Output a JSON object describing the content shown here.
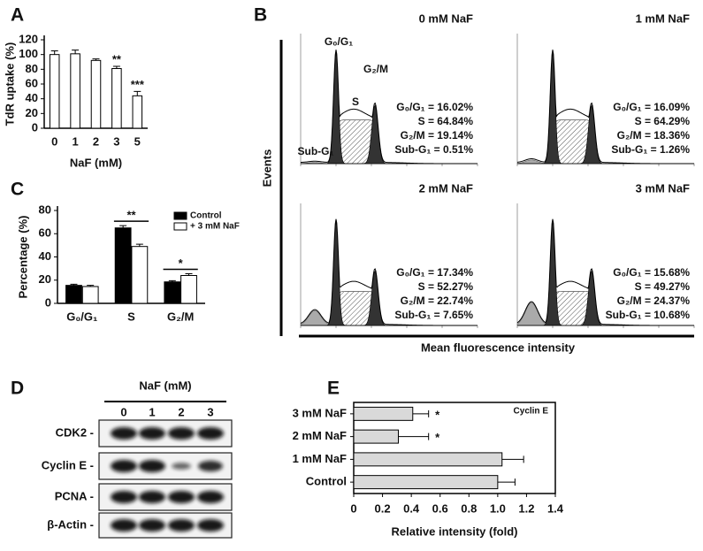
{
  "panel_labels": [
    "A",
    "B",
    "C",
    "D",
    "E"
  ],
  "chart_data": [
    {
      "type": "bar",
      "categories": [
        "0",
        "1",
        "2",
        "3",
        "5"
      ],
      "values": [
        100,
        101,
        92,
        81,
        44
      ],
      "errors": [
        5,
        5,
        2,
        3,
        6
      ],
      "color": "#ffffff",
      "ylim": [
        0,
        120
      ],
      "yticks": [
        0,
        20,
        40,
        60,
        80,
        100,
        120
      ],
      "ylabel": "TdR uptake (%)",
      "xlabel": "NaF (mM)",
      "annotations": [
        {
          "text": "**",
          "category": "3"
        },
        {
          "text": "***",
          "category": "5"
        }
      ]
    },
    {
      "type": "bar",
      "categories": [
        "G₀/G₁",
        "S",
        "G₂/M"
      ],
      "series": [
        {
          "name": "Control",
          "color": "#000000",
          "values": [
            15.5,
            65,
            18.5
          ],
          "errors": [
            1,
            2,
            1
          ]
        },
        {
          "name": "+ 3 mM NaF",
          "color": "#ffffff",
          "values": [
            14.5,
            49,
            24
          ],
          "errors": [
            1,
            2,
            1.5
          ]
        }
      ],
      "ylim": [
        0,
        80
      ],
      "yticks": [
        0,
        20,
        40,
        60,
        80
      ],
      "ylabel": "Percentage (%)",
      "legend": "upper right",
      "annotations": [
        {
          "text": "**",
          "category": "S"
        },
        {
          "text": "*",
          "category": "G₂/M"
        }
      ]
    },
    {
      "type": "hbar",
      "title": "Cyclin E",
      "categories": [
        "Control",
        "1 mM NaF",
        "2 mM NaF",
        "3 mM NaF"
      ],
      "values": [
        1.0,
        1.03,
        0.31,
        0.41
      ],
      "errors": [
        0.12,
        0.15,
        0.21,
        0.11
      ],
      "color": "#d9d9d9",
      "xlim": [
        0,
        1.4
      ],
      "xticks": [
        0,
        0.2,
        0.4,
        0.6,
        0.8,
        {
          "value": 1,
          "label": "1.0"
        },
        1.2,
        1.4
      ],
      "xlabel": "Relative intensity (fold)",
      "annotations": [
        {
          "text": "*",
          "category": "2 mM NaF"
        },
        {
          "text": "*",
          "category": "3 mM NaF"
        }
      ]
    }
  ],
  "flow_cytometry": {
    "ylabel": "Events",
    "xlabel": "Mean fluorescence intensity",
    "peak_labels": [
      "G₀/G₁",
      "S",
      "G₂/M",
      "Sub-G₁"
    ],
    "panels": [
      {
        "title": "0 mM NaF",
        "stats": [
          "G₀/G₁ = 16.02%",
          "S = 64.84%",
          "G₂/M = 19.14%",
          "Sub-G₁ = 0.51%"
        ]
      },
      {
        "title": "1 mM NaF",
        "stats": [
          "G₀/G₁ = 16.09%",
          "S = 64.29%",
          "G₂/M = 18.36%",
          "Sub-G₁ = 1.26%"
        ]
      },
      {
        "title": "2 mM NaF",
        "stats": [
          "G₀/G₁ = 17.34%",
          "S = 52.27%",
          "G₂/M = 22.74%",
          "Sub-G₁ = 7.65%"
        ]
      },
      {
        "title": "3 mM NaF",
        "stats": [
          "G₀/G₁ = 15.68%",
          "S = 49.27%",
          "G₂/M = 24.37%",
          "Sub-G₁ = 10.68%"
        ]
      }
    ]
  },
  "western_blot": {
    "header": "NaF (mM)",
    "lanes": [
      "0",
      "1",
      "2",
      "3"
    ],
    "rows": [
      "CDK2 -",
      "Cyclin E -",
      "PCNA -",
      "β-Actin -"
    ]
  }
}
